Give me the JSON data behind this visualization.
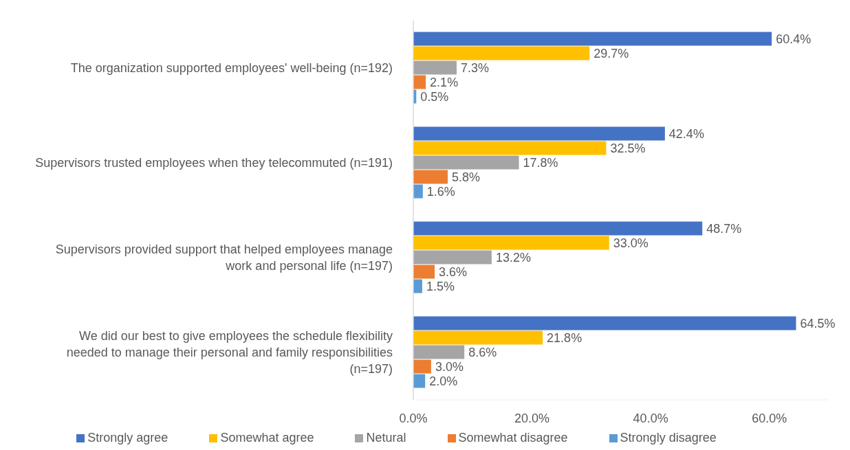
{
  "chart_data": {
    "type": "bar",
    "orientation": "horizontal",
    "categories": [
      "The organization supported employees' well-being (n=192)",
      "Supervisors trusted employees when they telecommuted (n=191)",
      "Supervisors provided support that helped employees manage work and personal life (n=197)",
      "We did our best to give employees the schedule flexibility needed to manage their personal and family responsibilities (n=197)"
    ],
    "series": [
      {
        "name": "Strongly agree",
        "color": "#4472c4",
        "values": [
          60.4,
          42.4,
          48.7,
          64.5
        ],
        "value_labels": [
          "60.4%",
          "42.4%",
          "48.7%",
          "64.5%"
        ]
      },
      {
        "name": "Somewhat agree",
        "color": "#ffc000",
        "values": [
          29.7,
          32.5,
          33.0,
          21.8
        ],
        "value_labels": [
          "29.7%",
          "32.5%",
          "33.0%",
          "21.8%"
        ]
      },
      {
        "name": "Netural",
        "color": "#a5a5a5",
        "values": [
          7.3,
          17.8,
          13.2,
          8.6
        ],
        "value_labels": [
          "7.3%",
          "17.8%",
          "13.2%",
          "8.6%"
        ]
      },
      {
        "name": "Somewhat disagree",
        "color": "#ed7d31",
        "values": [
          2.1,
          5.8,
          3.6,
          3.0
        ],
        "value_labels": [
          "2.1%",
          "5.8%",
          "3.6%",
          "3.0%"
        ]
      },
      {
        "name": "Strongly disagree",
        "color": "#5b9bd5",
        "values": [
          0.5,
          1.6,
          1.5,
          2.0
        ],
        "value_labels": [
          "0.5%",
          "1.6%",
          "1.5%",
          "2.0%"
        ]
      }
    ],
    "xlim": [
      0,
      70
    ],
    "xticks": [
      {
        "value": 0,
        "label": "0.0%"
      },
      {
        "value": 20,
        "label": "20.0%"
      },
      {
        "value": 40,
        "label": "40.0%"
      },
      {
        "value": 60,
        "label": "60.0%"
      }
    ],
    "grid": false,
    "legend": "bottom"
  }
}
